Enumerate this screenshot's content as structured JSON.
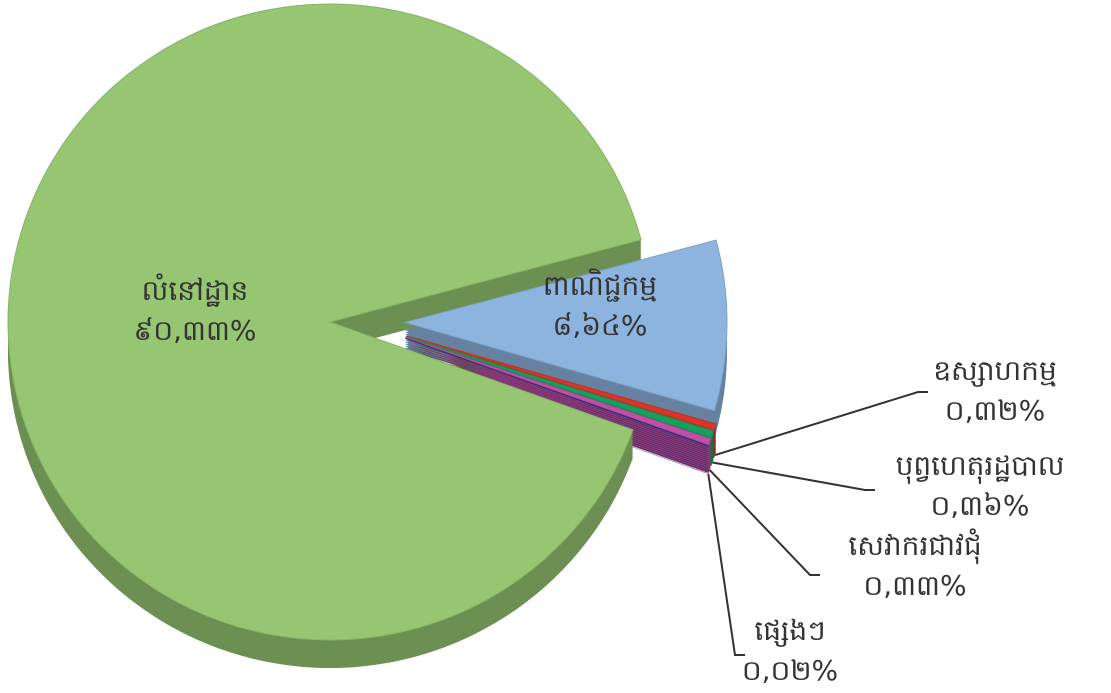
{
  "chart_data": {
    "type": "pie",
    "categories": [
      "លំនៅដ្ឋាន",
      "ពាណិជ្ជកម្ម",
      "ឧស្សាហកម្ម",
      "បុព្វហេតុរដ្ឋបាល",
      "សេវាករជាវជុំ",
      "ផ្សេងៗ"
    ],
    "values": [
      90.33,
      8.64,
      0.32,
      0.36,
      0.33,
      0.02
    ],
    "value_labels": [
      "៩០,៣៣%",
      "៨,៦៤%",
      "០,៣២%",
      "០,៣៦%",
      "០,៣៣%",
      "០,០២%"
    ],
    "colors": [
      "#96c672",
      "#8db4de",
      "#d9352a",
      "#16a05e",
      "#c24fa3",
      "#2f3596"
    ]
  }
}
